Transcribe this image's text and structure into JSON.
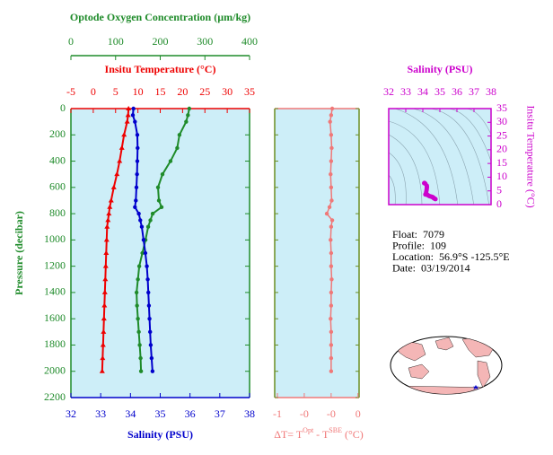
{
  "chart_data": [
    {
      "type": "profile",
      "y_label": "Pressure (decibar)",
      "ylim": [
        0,
        2200
      ],
      "yticks": [
        0,
        200,
        400,
        600,
        800,
        1000,
        1200,
        1400,
        1600,
        1800,
        2000,
        2200
      ],
      "pressure": [
        0,
        50,
        100,
        200,
        300,
        400,
        500,
        600,
        700,
        750,
        800,
        850,
        900,
        1000,
        1100,
        1200,
        1300,
        1400,
        1500,
        1600,
        1700,
        1800,
        1900,
        2000
      ],
      "oxygen": {
        "label": "Optode Oxygen Concentration (µm/kg)",
        "color": "#1f8b2a",
        "xlim": [
          0,
          400
        ],
        "xticks": [
          0,
          100,
          200,
          300,
          400
        ],
        "values": [
          265,
          262,
          258,
          243,
          238,
          223,
          205,
          195,
          197,
          203,
          183,
          178,
          173,
          167,
          160,
          153,
          150,
          147,
          148,
          150,
          152,
          154,
          156,
          157
        ]
      },
      "temperature": {
        "label": "Insitu Temperature (°C)",
        "color": "#ee0000",
        "xlim": [
          -5,
          35
        ],
        "xticks": [
          -5,
          0,
          5,
          10,
          15,
          20,
          25,
          30,
          35
        ],
        "values": [
          7.9,
          7.8,
          7.6,
          6.9,
          6.4,
          5.9,
          5.3,
          4.6,
          4.0,
          3.7,
          3.5,
          3.3,
          3.1,
          3.0,
          2.9,
          2.8,
          2.7,
          2.6,
          2.5,
          2.4,
          2.3,
          2.2,
          2.1,
          2.0
        ]
      },
      "salinity": {
        "label": "Salinity (PSU)",
        "color": "#0000cc",
        "xlim": [
          32,
          38
        ],
        "xticks": [
          32,
          33,
          34,
          35,
          36,
          37,
          38
        ],
        "values": [
          34.1,
          34.08,
          34.15,
          34.23,
          34.24,
          34.23,
          34.22,
          34.2,
          34.18,
          34.15,
          34.28,
          34.33,
          34.38,
          34.44,
          34.5,
          34.55,
          34.58,
          34.6,
          34.62,
          34.64,
          34.66,
          34.68,
          34.71,
          34.74
        ]
      }
    },
    {
      "type": "delta",
      "label": [
        "ΔT= T",
        "Opt",
        " - T",
        "SBE",
        " (°C)"
      ],
      "color": "#f07878",
      "xlim": [
        -1.05,
        0.52
      ],
      "xticks": [
        -1,
        {
          "value": -0.5,
          "label": "-0"
        },
        {
          "value": 0,
          "label": "-0"
        },
        {
          "value": 0.5,
          "label": "0"
        }
      ],
      "values": [
        0.02,
        0.0,
        -0.02,
        0.0,
        0.01,
        0.0,
        -0.01,
        0.0,
        0.01,
        -0.03,
        -0.08,
        0.02,
        0.0,
        -0.01,
        0.0,
        0.0,
        0.01,
        0.0,
        0.0,
        -0.01,
        0.0,
        0.0,
        0.0,
        0.0
      ]
    },
    {
      "type": "ts",
      "x_label": "Salinity (PSU)",
      "y_label": "Insitu Temperature (°C)",
      "color": "#cc00cc",
      "xlim": [
        32,
        38
      ],
      "xticks": [
        32,
        33,
        34,
        35,
        36,
        37,
        38
      ],
      "ylim": [
        0,
        35
      ],
      "yticks": [
        0,
        5,
        10,
        15,
        20,
        25,
        30,
        35
      ]
    }
  ],
  "float_info": [
    [
      "Float:",
      "7079"
    ],
    [
      "Profile:",
      "109"
    ],
    [
      "Location:",
      "56.9°S -125.5°E"
    ],
    [
      "Date:",
      "03/19/2014"
    ]
  ]
}
